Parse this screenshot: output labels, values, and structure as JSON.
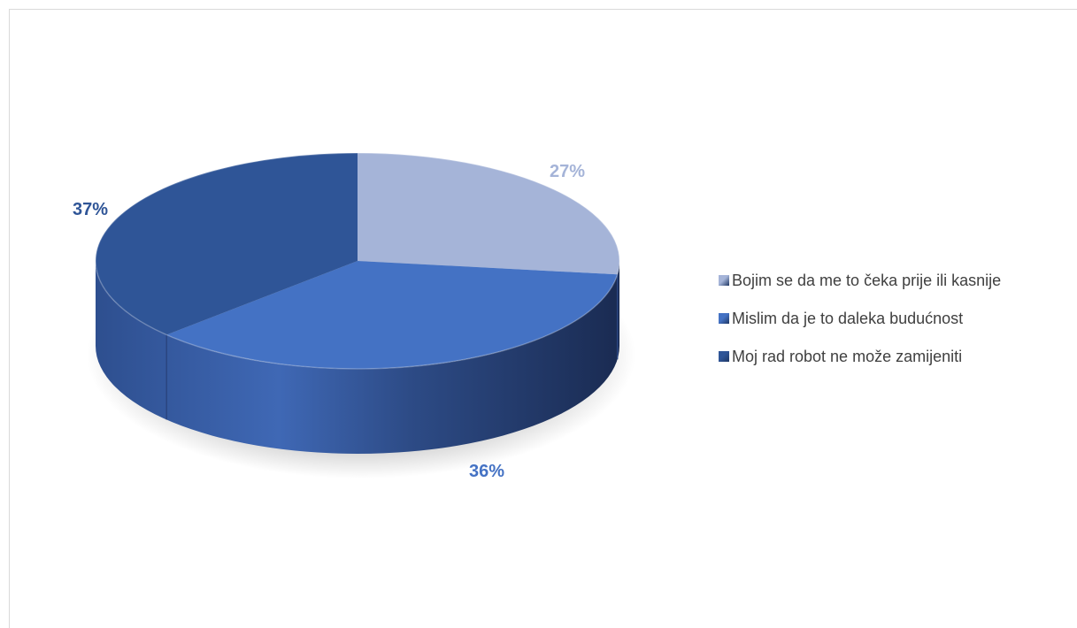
{
  "chart_data": {
    "type": "pie",
    "style": "3d",
    "title": "",
    "labels": [
      "Bojim se da me to čeka prije ili kasnije",
      "Mislim da je to daleka budućnost",
      "Moj rad robot ne može zamijeniti"
    ],
    "values": [
      27,
      36,
      37
    ],
    "value_labels": [
      "27%",
      "36%",
      "37%"
    ],
    "colors": [
      "#a5b4d8",
      "#4472c4",
      "#2f5597"
    ],
    "legend_position": "right"
  }
}
